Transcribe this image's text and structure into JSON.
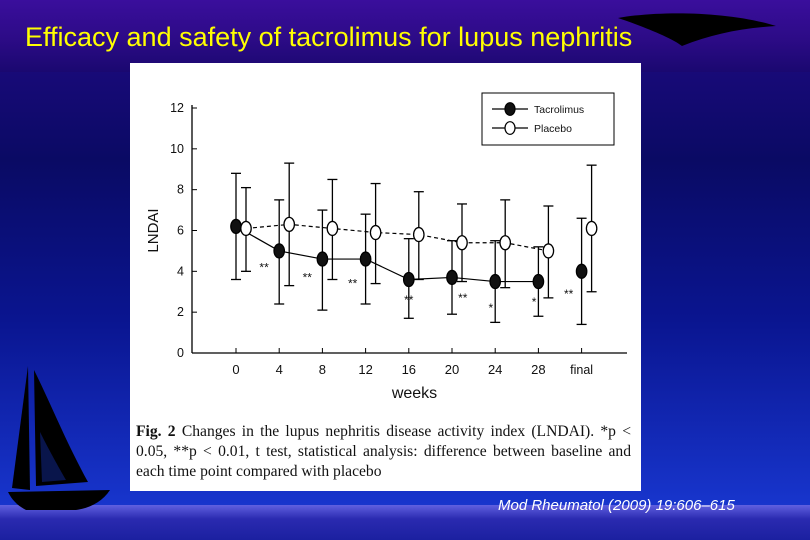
{
  "slide": {
    "title": "Efficacy and safety of tacrolimus for lupus nephritis",
    "citation": "Mod Rheumatol (2009) 19:606–615"
  },
  "caption": {
    "label": "Fig. 2",
    "text": " Changes in the lupus nephritis disease activity index (LNDAI). *p < 0.05, **p < 0.01, t test, statistical analysis: difference between baseline and each time point compared with placebo"
  },
  "chart_data": {
    "type": "line",
    "xlabel": "weeks",
    "ylabel": "LNDAI",
    "ylim": [
      0,
      12
    ],
    "yticks": [
      0,
      2,
      4,
      6,
      8,
      10,
      12
    ],
    "categories": [
      "0",
      "4",
      "8",
      "12",
      "16",
      "20",
      "24",
      "28",
      "final"
    ],
    "legend_position": "top-right",
    "series": [
      {
        "name": "Tacrolimus",
        "marker": "filled-circle",
        "line": "solid",
        "values": [
          6.2,
          5.0,
          4.6,
          4.6,
          3.6,
          3.7,
          3.5,
          3.5,
          4.0
        ],
        "err_low": [
          3.6,
          2.4,
          2.1,
          2.4,
          1.7,
          1.9,
          1.5,
          1.8,
          1.4
        ],
        "err_high": [
          8.8,
          7.5,
          7.0,
          6.8,
          5.6,
          5.5,
          5.5,
          5.2,
          6.6
        ]
      },
      {
        "name": "Placebo",
        "marker": "open-circle",
        "line": "dashed",
        "values": [
          6.1,
          6.3,
          6.1,
          5.9,
          5.8,
          5.4,
          5.4,
          5.0,
          6.1
        ],
        "err_low": [
          4.0,
          3.3,
          3.6,
          3.4,
          3.6,
          3.5,
          3.2,
          2.7,
          3.0
        ],
        "err_high": [
          8.1,
          9.3,
          8.5,
          8.3,
          7.9,
          7.3,
          7.5,
          7.2,
          9.2
        ]
      }
    ],
    "annotations": [
      {
        "text": "**",
        "x_index": 0.65,
        "y": 4.0
      },
      {
        "text": "**",
        "x_index": 1.65,
        "y": 3.5
      },
      {
        "text": "**",
        "x_index": 2.7,
        "y": 3.2
      },
      {
        "text": "**",
        "x_index": 4.0,
        "y": 2.4
      },
      {
        "text": "**",
        "x_index": 5.25,
        "y": 2.5
      },
      {
        "text": "*",
        "x_index": 5.9,
        "y": 2.0
      },
      {
        "text": "*",
        "x_index": 6.9,
        "y": 2.3
      },
      {
        "text": "**",
        "x_index": 7.7,
        "y": 2.7
      }
    ]
  }
}
